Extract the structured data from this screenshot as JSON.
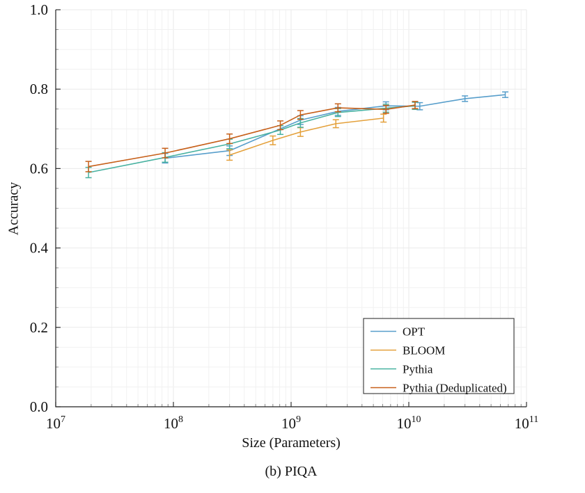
{
  "figure": {
    "caption": "(b) PIQA"
  },
  "chart_data": {
    "type": "line",
    "title": "",
    "xlabel": "Size (Parameters)",
    "ylabel": "Accuracy",
    "x_scale": "log",
    "x_log_range": [
      7,
      11
    ],
    "ylim": [
      0.0,
      1.0
    ],
    "grid": true,
    "y_minor_step": 0.05,
    "y_ticks": [
      {
        "v": 0.0,
        "label": "0.0"
      },
      {
        "v": 0.2,
        "label": "0.2"
      },
      {
        "v": 0.4,
        "label": "0.4"
      },
      {
        "v": 0.6,
        "label": "0.6"
      },
      {
        "v": 0.8,
        "label": "0.8"
      },
      {
        "v": 1.0,
        "label": "1.0"
      }
    ],
    "x_ticks": [
      {
        "v": 10000000.0,
        "base": "10",
        "exp": "7"
      },
      {
        "v": 100000000.0,
        "base": "10",
        "exp": "8"
      },
      {
        "v": 1000000000.0,
        "base": "10",
        "exp": "9"
      },
      {
        "v": 10000000000.0,
        "base": "10",
        "exp": "10"
      },
      {
        "v": 100000000000.0,
        "base": "10",
        "exp": "11"
      }
    ],
    "legend": {
      "position": "lower-right",
      "border": true
    },
    "series": [
      {
        "name": "OPT",
        "color": "#579ecb",
        "points": [
          {
            "x": 85000000.0,
            "y": 0.626,
            "err": 0.012
          },
          {
            "x": 300000000.0,
            "y": 0.645,
            "err": 0.012
          },
          {
            "x": 1200000000.0,
            "y": 0.722,
            "err": 0.011
          },
          {
            "x": 2500000000.0,
            "y": 0.744,
            "err": 0.01
          },
          {
            "x": 6400000000.0,
            "y": 0.758,
            "err": 0.01
          },
          {
            "x": 12400000000.0,
            "y": 0.757,
            "err": 0.009
          },
          {
            "x": 30000000000.0,
            "y": 0.776,
            "err": 0.007
          },
          {
            "x": 66000000000.0,
            "y": 0.786,
            "err": 0.007
          }
        ]
      },
      {
        "name": "BLOOM",
        "color": "#e4a03a",
        "points": [
          {
            "x": 300000000.0,
            "y": 0.634,
            "err": 0.013
          },
          {
            "x": 700000000.0,
            "y": 0.671,
            "err": 0.011
          },
          {
            "x": 1200000000.0,
            "y": 0.692,
            "err": 0.011
          },
          {
            "x": 2400000000.0,
            "y": 0.713,
            "err": 0.01
          },
          {
            "x": 6100000000.0,
            "y": 0.727,
            "err": 0.01
          }
        ]
      },
      {
        "name": "Pythia",
        "color": "#47b1a0",
        "points": [
          {
            "x": 19000000.0,
            "y": 0.59,
            "err": 0.013
          },
          {
            "x": 85000000.0,
            "y": 0.628,
            "err": 0.012
          },
          {
            "x": 300000000.0,
            "y": 0.662,
            "err": 0.012
          },
          {
            "x": 810000000.0,
            "y": 0.697,
            "err": 0.011
          },
          {
            "x": 1200000000.0,
            "y": 0.715,
            "err": 0.011
          },
          {
            "x": 2500000000.0,
            "y": 0.741,
            "err": 0.01
          },
          {
            "x": 6400000000.0,
            "y": 0.752,
            "err": 0.01
          },
          {
            "x": 11300000000.0,
            "y": 0.758,
            "err": 0.009
          }
        ]
      },
      {
        "name": "Pythia (Deduplicated)",
        "color": "#c7601a",
        "points": [
          {
            "x": 19000000.0,
            "y": 0.605,
            "err": 0.013
          },
          {
            "x": 85000000.0,
            "y": 0.639,
            "err": 0.012
          },
          {
            "x": 300000000.0,
            "y": 0.675,
            "err": 0.012
          },
          {
            "x": 810000000.0,
            "y": 0.709,
            "err": 0.011
          },
          {
            "x": 1200000000.0,
            "y": 0.735,
            "err": 0.011
          },
          {
            "x": 2500000000.0,
            "y": 0.753,
            "err": 0.01
          },
          {
            "x": 6400000000.0,
            "y": 0.749,
            "err": 0.01
          },
          {
            "x": 11300000000.0,
            "y": 0.76,
            "err": 0.009
          }
        ]
      }
    ]
  }
}
